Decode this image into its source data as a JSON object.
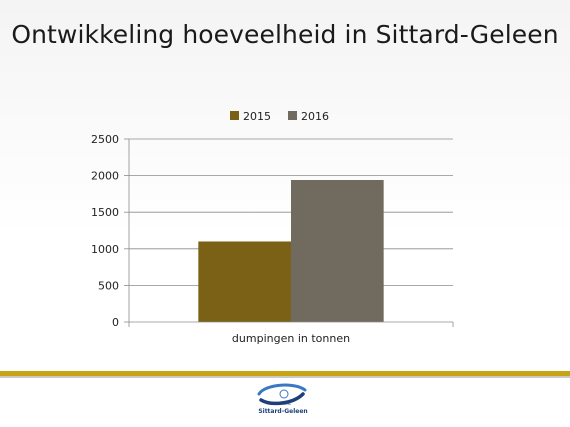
{
  "chart_data": {
    "type": "bar",
    "title": "Ontwikkeling hoeveelheid in Sittard-Geleen",
    "categories": [
      "dumpingen in tonnen"
    ],
    "series": [
      {
        "name": "2015",
        "values": [
          1100
        ],
        "color": "#7a6116"
      },
      {
        "name": "2016",
        "values": [
          1940
        ],
        "color": "#716a5e"
      }
    ],
    "ylim": [
      0,
      2500
    ],
    "yticks": [
      "0",
      "500",
      "1000",
      "1500",
      "2000",
      "2500"
    ],
    "xlabel": "",
    "ylabel": "",
    "grid": true,
    "legend": "top"
  },
  "footer": {
    "logo_icon": "municipality-logo-icon",
    "logo_small": "Gemeente",
    "logo_name": "Sittard-Geleen",
    "rule_color": "#c8a415"
  }
}
